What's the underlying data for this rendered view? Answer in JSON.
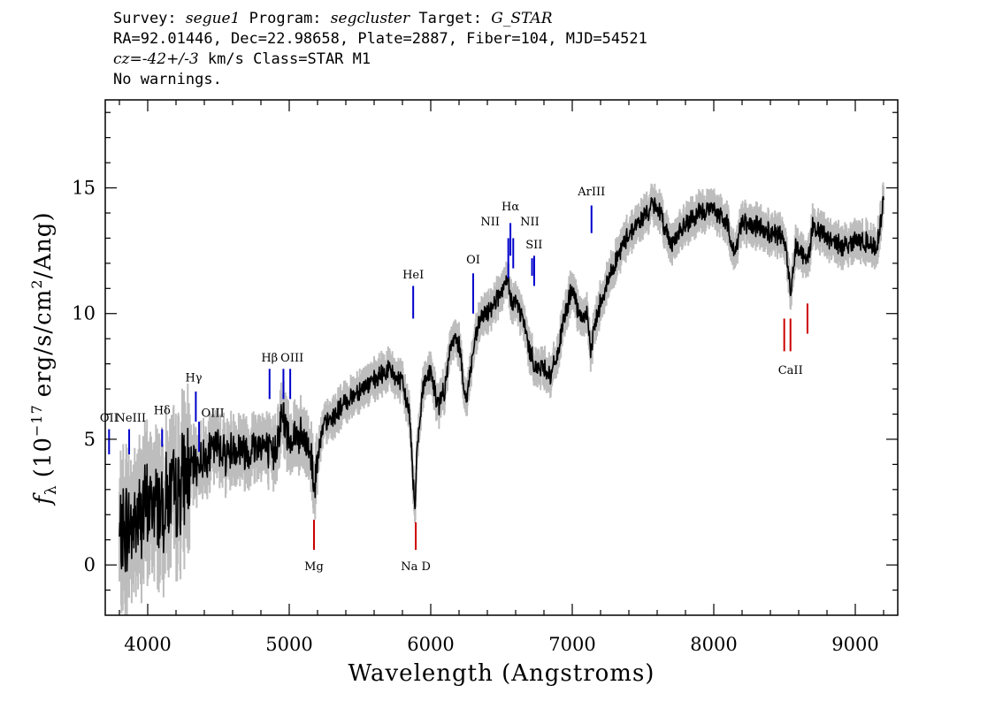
{
  "header": {
    "line1": {
      "survey_label": "Survey:",
      "survey": "segue1",
      "program_label": "Program:",
      "program": "segcluster",
      "target_label": "Target:",
      "target": "G_STAR"
    },
    "line2": "RA=92.01446, Dec=22.98658, Plate=2887, Fiber=104, MJD=54521",
    "line3": {
      "cz_label": "cz=",
      "cz_value": "-42+/-3",
      "cz_unit": " km/s Class=STAR M1"
    },
    "line4": "No warnings."
  },
  "colors": {
    "spectrum": "#000000",
    "error_band": "#bdbdbd",
    "emission_line": "#0000cc",
    "absorption_line": "#cc0000"
  },
  "chart_data": {
    "type": "line",
    "xlabel": "Wavelength (Angstroms)",
    "ylabel_parts": {
      "f": "f",
      "sub": "λ",
      "pre": "(10",
      "exp1": "−17",
      "mid": "erg/s/cm",
      "exp2": "2",
      "post": "/Ang)"
    },
    "xlim": [
      3700,
      9300
    ],
    "ylim": [
      -2,
      18.5
    ],
    "x_major_ticks": [
      4000,
      5000,
      6000,
      7000,
      8000,
      9000
    ],
    "y_major_ticks": [
      0,
      5,
      10,
      15
    ],
    "x_tick_labels": [
      "4000",
      "5000",
      "6000",
      "7000",
      "8000",
      "9000"
    ],
    "y_tick_labels": [
      "0",
      "5",
      "10",
      "15"
    ],
    "series": [
      {
        "x": [
          3800,
          3850,
          3900,
          3950,
          4000,
          4050,
          4100,
          4150,
          4200,
          4250,
          4300,
          4350,
          4400,
          4450,
          4500,
          4550,
          4600,
          4650,
          4700,
          4750,
          4800,
          4850,
          4880,
          4900,
          4950,
          5000,
          5050,
          5100,
          5150,
          5180,
          5200,
          5250,
          5300,
          5400,
          5500,
          5600,
          5700,
          5800,
          5850,
          5880,
          5890,
          5900,
          5950,
          6000,
          6050,
          6100,
          6150,
          6200,
          6250,
          6300,
          6350,
          6400,
          6450,
          6500,
          6550,
          6563,
          6600,
          6650,
          6700,
          6750,
          6800,
          6850,
          6900,
          6950,
          7000,
          7050,
          7100,
          7130,
          7150,
          7200,
          7300,
          7400,
          7500,
          7550,
          7600,
          7650,
          7700,
          7800,
          7900,
          8000,
          8100,
          8150,
          8200,
          8250,
          8300,
          8400,
          8498,
          8520,
          8542,
          8580,
          8620,
          8662,
          8700,
          8800,
          8900,
          9000,
          9100,
          9150,
          9200
        ],
        "y": [
          1.0,
          1.5,
          1.6,
          2.0,
          2.3,
          2.5,
          2.4,
          2.8,
          2.7,
          3.5,
          3.8,
          4.0,
          4.3,
          4.5,
          4.8,
          4.4,
          4.6,
          4.7,
          4.5,
          4.7,
          4.9,
          4.5,
          4.3,
          4.6,
          6.0,
          5.0,
          5.2,
          4.9,
          4.6,
          3.0,
          4.5,
          5.6,
          5.8,
          6.5,
          7.0,
          7.3,
          7.8,
          7.2,
          6.0,
          3.0,
          2.0,
          4.5,
          7.3,
          7.7,
          6.3,
          7.0,
          9.0,
          8.8,
          6.5,
          8.5,
          9.8,
          10.0,
          10.5,
          10.8,
          11.3,
          10.5,
          10.5,
          9.8,
          8.5,
          7.8,
          7.9,
          7.5,
          8.5,
          10.0,
          11.0,
          9.8,
          10.0,
          8.5,
          9.3,
          10.5,
          12.0,
          13.2,
          13.8,
          14.2,
          14.3,
          13.5,
          12.8,
          13.5,
          14.0,
          14.2,
          13.5,
          12.3,
          13.8,
          13.4,
          13.5,
          13.2,
          13.0,
          12.0,
          10.8,
          12.8,
          12.5,
          12.0,
          13.5,
          13.0,
          12.7,
          12.9,
          12.8,
          12.6,
          14.5
        ]
      }
    ],
    "lines": [
      {
        "label": "OII",
        "wave": 3727,
        "y0": 4.4,
        "y1": 5.4,
        "kind": "em",
        "lx": 3727,
        "ly": 5.7
      },
      {
        "label": "NeIII",
        "wave": 3869,
        "y0": 4.4,
        "y1": 5.4,
        "kind": "em",
        "lx": 3880,
        "ly": 5.7
      },
      {
        "label": "Hδ",
        "wave": 4102,
        "y0": 4.7,
        "y1": 5.4,
        "kind": "em",
        "lx": 4102,
        "ly": 6.0
      },
      {
        "label": "Hγ",
        "wave": 4340,
        "y0": 5.7,
        "y1": 6.9,
        "kind": "em",
        "lx": 4325,
        "ly": 7.3
      },
      {
        "label": "OIII",
        "wave": 4363,
        "y0": 4.5,
        "y1": 5.7,
        "kind": "em",
        "lx": 4460,
        "ly": 5.9
      },
      {
        "label": "Hβ",
        "wave": 4861,
        "y0": 6.6,
        "y1": 7.8,
        "kind": "em",
        "lx": 4861,
        "ly": 8.1
      },
      {
        "label": "OIII",
        "wave": 4959,
        "y0": 6.6,
        "y1": 7.8,
        "kind": "em",
        "lx": 5020,
        "ly": 8.1
      },
      {
        "label": "",
        "wave": 5007,
        "y0": 6.6,
        "y1": 7.8,
        "kind": "em",
        "lx": 5007,
        "ly": 8.1
      },
      {
        "label": "HeI",
        "wave": 5876,
        "y0": 9.8,
        "y1": 11.1,
        "kind": "em",
        "lx": 5876,
        "ly": 11.4
      },
      {
        "label": "OI",
        "wave": 6300,
        "y0": 10.0,
        "y1": 11.6,
        "kind": "em",
        "lx": 6300,
        "ly": 12.0
      },
      {
        "label": "NII",
        "wave": 6548,
        "y0": 11.4,
        "y1": 13.0,
        "kind": "em",
        "lx": 6420,
        "ly": 13.5
      },
      {
        "label": "Hα",
        "wave": 6563,
        "y0": 12.3,
        "y1": 13.6,
        "kind": "em",
        "lx": 6563,
        "ly": 14.1
      },
      {
        "label": "NII",
        "wave": 6583,
        "y0": 11.8,
        "y1": 13.0,
        "kind": "em",
        "lx": 6700,
        "ly": 13.5
      },
      {
        "label": "SII",
        "wave": 6716,
        "y0": 11.5,
        "y1": 12.2,
        "kind": "em",
        "lx": 6730,
        "ly": 12.6
      },
      {
        "label": "",
        "wave": 6731,
        "y0": 11.1,
        "y1": 12.3,
        "kind": "em",
        "lx": 6731,
        "ly": 12.6
      },
      {
        "label": "ArIII",
        "wave": 7136,
        "y0": 13.2,
        "y1": 14.3,
        "kind": "em",
        "lx": 7136,
        "ly": 14.7
      },
      {
        "label": "Mg",
        "wave": 5175,
        "y0": 1.8,
        "y1": 0.6,
        "kind": "abs",
        "lx": 5175,
        "ly": -0.2
      },
      {
        "label": "Na D",
        "wave": 5894,
        "y0": 1.7,
        "y1": 0.6,
        "kind": "abs",
        "lx": 5894,
        "ly": -0.2
      },
      {
        "label": "",
        "wave": 8498,
        "y0": 9.8,
        "y1": 8.5,
        "kind": "abs",
        "lx": 8498,
        "ly": 8.5
      },
      {
        "label": "CaII",
        "wave": 8542,
        "y0": 9.8,
        "y1": 8.5,
        "kind": "abs",
        "lx": 8542,
        "ly": 7.6
      },
      {
        "label": "",
        "wave": 8662,
        "y0": 10.4,
        "y1": 9.2,
        "kind": "abs",
        "lx": 8662,
        "ly": 9.2
      }
    ]
  }
}
